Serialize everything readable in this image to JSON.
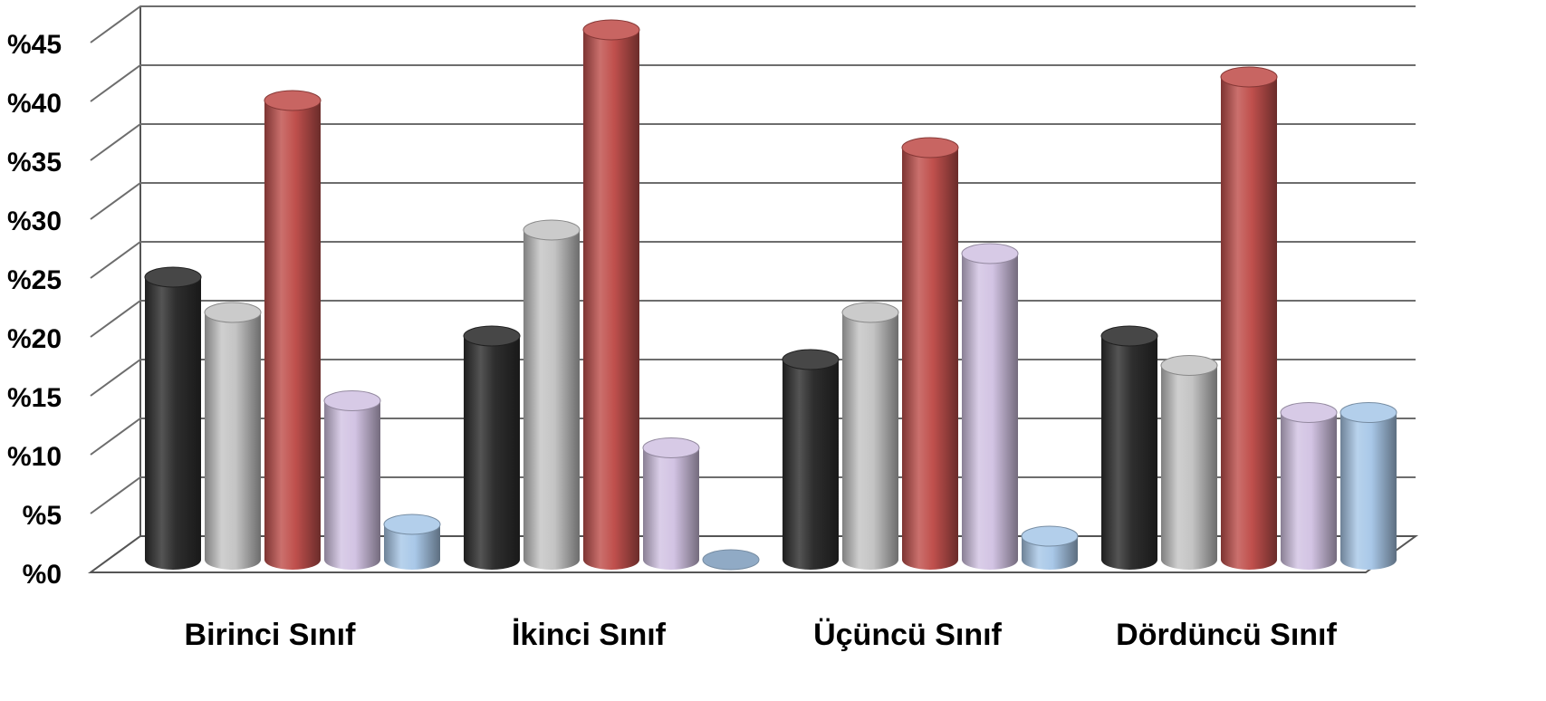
{
  "chart_data": {
    "type": "bar",
    "title": "",
    "xlabel": "",
    "ylabel": "",
    "ylim": [
      0,
      45
    ],
    "yticks": [
      0,
      5,
      10,
      15,
      20,
      25,
      30,
      35,
      40,
      45
    ],
    "ytick_labels": [
      "%0",
      "%5",
      "%10",
      "%15",
      "%20",
      "%25",
      "%30",
      "%35",
      "%40",
      "%45"
    ],
    "grid": true,
    "legend": "none",
    "style": "3d-cylinder",
    "categories": [
      "Birinci Sınıf",
      "İkinci Sınıf",
      "Üçüncü Sınıf",
      "Dördüncü Sınıf"
    ],
    "series": [
      {
        "color": "#2e2e2e",
        "values": [
          24,
          19,
          17,
          19
        ]
      },
      {
        "color": "#c4c4c4",
        "values": [
          21,
          28,
          21,
          16.5
        ]
      },
      {
        "color": "#c0504d",
        "values": [
          39,
          45,
          35,
          41
        ]
      },
      {
        "color": "#d2c3e3",
        "values": [
          13.5,
          9.5,
          26,
          12.5
        ]
      },
      {
        "color": "#a9c8e8",
        "values": [
          3,
          0,
          2,
          12.5
        ]
      }
    ]
  }
}
